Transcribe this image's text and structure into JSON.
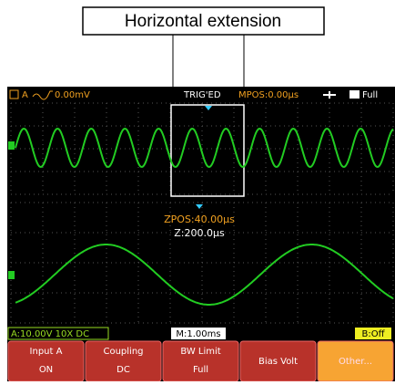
{
  "callout": {
    "label": "Horizontal extension"
  },
  "status_bar": {
    "channel": "A",
    "trigger_level": "0.00mV",
    "trigger_state": "TRIG'ED",
    "main_position": "MPOS:0.00µs",
    "power": "Full"
  },
  "zoom": {
    "position": "ZPOS:40.00µs",
    "timebase": "Z:200.0µs"
  },
  "info_bar": {
    "channel_a": "A:10.00V 10X DC",
    "main_timebase": "M:1.00ms",
    "channel_b": "B:Off"
  },
  "softkeys": [
    {
      "title": "Input A",
      "value": "ON"
    },
    {
      "title": "Coupling",
      "value": "DC"
    },
    {
      "title": "BW Limit",
      "value": "Full"
    },
    {
      "title": "Bias Volt"
    },
    {
      "title": "Other..."
    }
  ]
}
